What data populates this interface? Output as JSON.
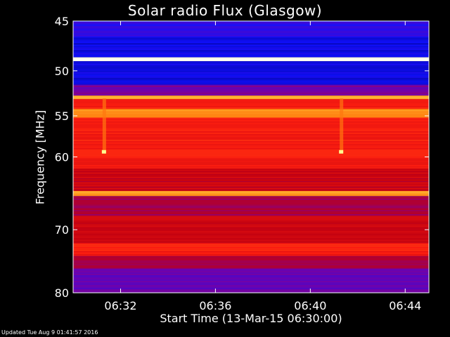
{
  "chart_data": {
    "type": "heatmap",
    "title": "Solar radio Flux (Glasgow)",
    "xlabel": "Start Time (13-Mar-15 06:30:00)",
    "ylabel": "Frequency [MHz]",
    "x_ticks": [
      "06:32",
      "06:36",
      "06:40",
      "06:44"
    ],
    "x_tick_minutes": [
      2,
      6,
      10,
      14
    ],
    "x_range_minutes": [
      0,
      15
    ],
    "y_ticks": [
      45,
      50,
      55,
      60,
      70,
      80
    ],
    "y_range_mhz": [
      45,
      80
    ],
    "y_scale": "log",
    "colormap": [
      "#000060",
      "#1010ff",
      "#7a00a0",
      "#c00010",
      "#ff2010",
      "#ff8010",
      "#ffff60",
      "#ffffff"
    ],
    "bands_mhz": [
      {
        "from": 45,
        "to": 46.5,
        "level": 0.18
      },
      {
        "from": 46.5,
        "to": 48.6,
        "level": 0.12
      },
      {
        "from": 48.6,
        "to": 49.0,
        "level": 0.97
      },
      {
        "from": 49.0,
        "to": 51.5,
        "level": 0.12
      },
      {
        "from": 51.5,
        "to": 52.7,
        "level": 0.28
      },
      {
        "from": 52.7,
        "to": 53.1,
        "level": 0.78
      },
      {
        "from": 53.1,
        "to": 54.2,
        "level": 0.55
      },
      {
        "from": 54.2,
        "to": 55.2,
        "level": 0.72
      },
      {
        "from": 55.2,
        "to": 61.5,
        "level": 0.55
      },
      {
        "from": 61.5,
        "to": 64.5,
        "level": 0.45
      },
      {
        "from": 64.5,
        "to": 65.2,
        "level": 0.75
      },
      {
        "from": 65.2,
        "to": 68.0,
        "level": 0.38
      },
      {
        "from": 68.0,
        "to": 72.0,
        "level": 0.45
      },
      {
        "from": 72.0,
        "to": 74.0,
        "level": 0.55
      },
      {
        "from": 74.0,
        "to": 76.0,
        "level": 0.38
      },
      {
        "from": 76.0,
        "to": 80.0,
        "level": 0.26
      }
    ],
    "bursts": [
      {
        "time_minutes": 1.3,
        "freq_mhz": 59.4
      },
      {
        "time_minutes": 11.3,
        "freq_mhz": 59.4
      }
    ]
  },
  "footer": "Updated Tue Aug  9 01:41:57 2016"
}
